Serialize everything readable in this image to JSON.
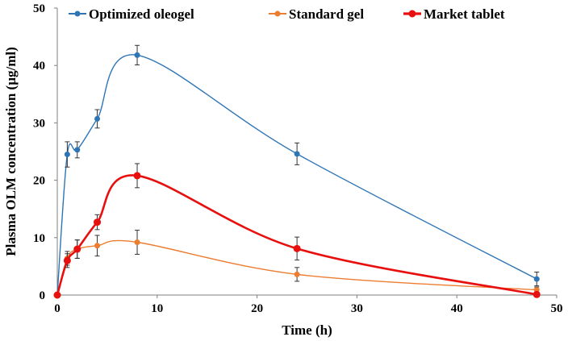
{
  "chart_data": {
    "type": "line",
    "title": "",
    "xlabel": "Time (h)",
    "ylabel": "Plasma OLM concentration (µg/ml)",
    "xlim": [
      0,
      50
    ],
    "ylim": [
      0,
      50
    ],
    "xticks": [
      0,
      10,
      20,
      30,
      40,
      50
    ],
    "yticks": [
      0,
      10,
      20,
      30,
      40,
      50
    ],
    "x": [
      0,
      1,
      2,
      4,
      8,
      24,
      48
    ],
    "legend_position": "top",
    "series": [
      {
        "name": "Optimized oleogel",
        "color": "#2E75B6",
        "line_width": 1.4,
        "marker_size": 3.5,
        "values": [
          0,
          24.5,
          25.3,
          30.7,
          41.8,
          24.6,
          2.8
        ],
        "errors": [
          0,
          2.2,
          1.4,
          1.6,
          1.7,
          1.9,
          1.2
        ]
      },
      {
        "name": "Standard gel",
        "color": "#ED7D31",
        "line_width": 1.4,
        "marker_size": 3.5,
        "values": [
          0,
          6.4,
          8.0,
          8.6,
          9.2,
          3.6,
          0.9
        ],
        "errors": [
          0,
          1.2,
          1.6,
          1.8,
          2.1,
          1.2,
          0.5
        ]
      },
      {
        "name": "Market tablet",
        "color": "#E8100E",
        "line_width": 2.6,
        "marker_size": 4.5,
        "values": [
          0,
          6.0,
          8.0,
          12.7,
          20.8,
          8.1,
          0.1
        ],
        "errors": [
          0,
          1.2,
          1.6,
          1.3,
          2.1,
          2.0,
          0.4
        ]
      }
    ]
  }
}
